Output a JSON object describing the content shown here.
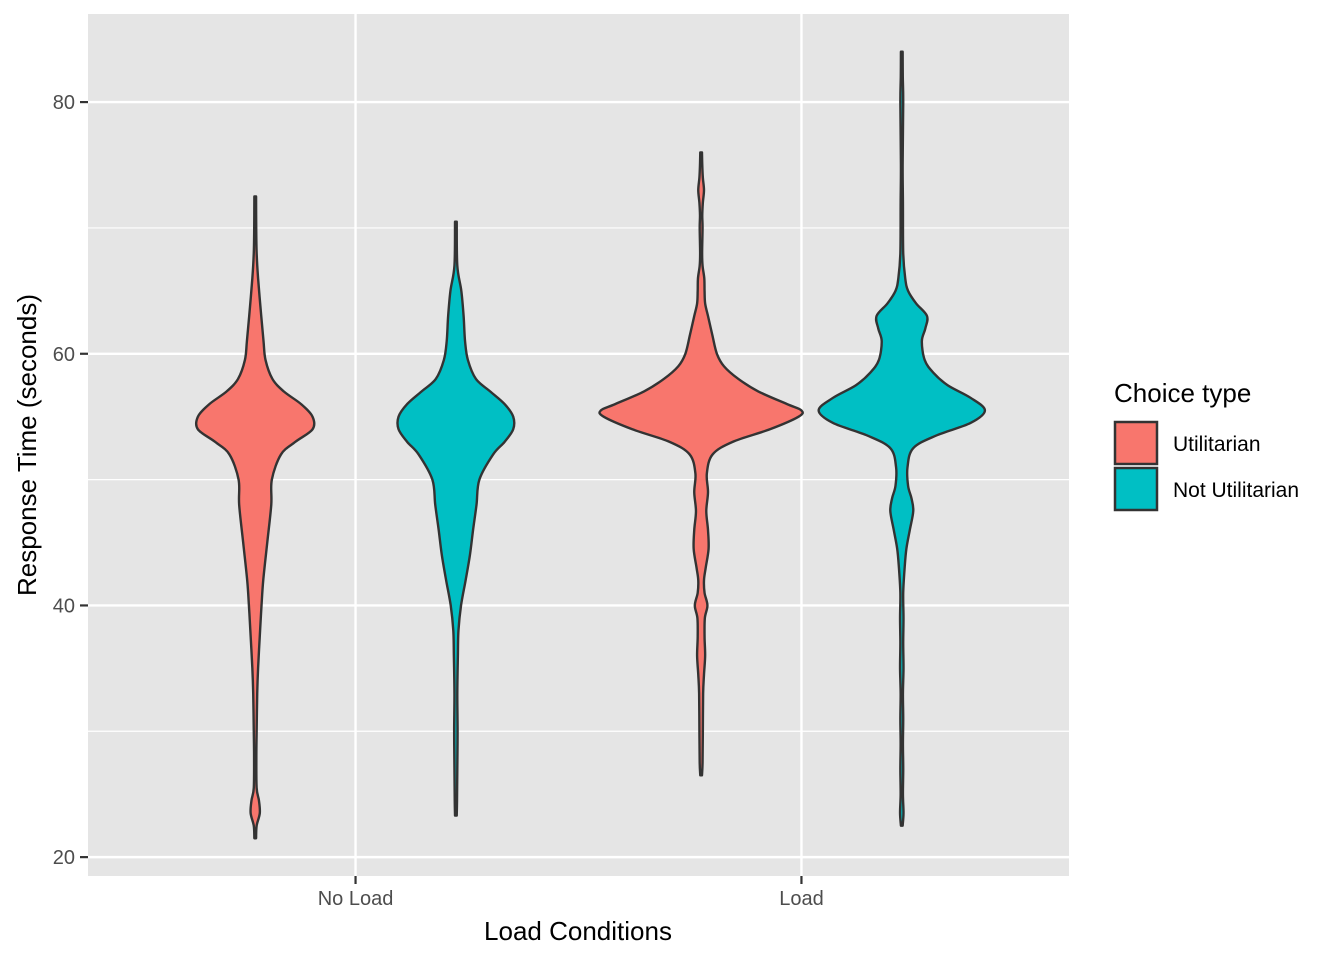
{
  "chart_data": {
    "type": "violin",
    "xlabel": "Load Conditions",
    "ylabel": "Response Time (seconds)",
    "categories": [
      "No Load",
      "Load"
    ],
    "ylim": [
      18.5,
      87
    ],
    "yticks": [
      20,
      40,
      60,
      80
    ],
    "grid": true,
    "legend": {
      "title": "Choice type",
      "position": "right"
    },
    "colors": {
      "panel": "#e5e5e5",
      "grid": "#ffffff",
      "outline": "#333333",
      "Utilitarian": "#f8766d",
      "Not Utilitarian": "#00bfc4"
    },
    "series": [
      {
        "name": "Utilitarian",
        "color": "#f8766d",
        "violins": [
          {
            "category": "No Load",
            "profile": [
              [
                21.5,
                0.3
              ],
              [
                22.5,
                0.5
              ],
              [
                23.5,
                1.6
              ],
              [
                24.5,
                1.3
              ],
              [
                25.5,
                0.5
              ],
              [
                28,
                0.4
              ],
              [
                30,
                0.5
              ],
              [
                33,
                0.7
              ],
              [
                35,
                1.0
              ],
              [
                38,
                1.7
              ],
              [
                40,
                2.2
              ],
              [
                42,
                2.8
              ],
              [
                45,
                4.2
              ],
              [
                48,
                5.6
              ],
              [
                50,
                5.8
              ],
              [
                52,
                9
              ],
              [
                53,
                14
              ],
              [
                54,
                20
              ],
              [
                55,
                20
              ],
              [
                56,
                16
              ],
              [
                57,
                10
              ],
              [
                58,
                6
              ],
              [
                59.5,
                3.6
              ],
              [
                61,
                2.9
              ],
              [
                63,
                2.1
              ],
              [
                66,
                1.0
              ],
              [
                68,
                0.5
              ],
              [
                70,
                0.35
              ],
              [
                72.5,
                0.3
              ]
            ]
          },
          {
            "category": "Load",
            "profile": [
              [
                26.5,
                0.3
              ],
              [
                27.5,
                0.5
              ],
              [
                30,
                0.6
              ],
              [
                33,
                0.7
              ],
              [
                34.5,
                1.0
              ],
              [
                36,
                1.4
              ],
              [
                37.5,
                1.2
              ],
              [
                39,
                1.3
              ],
              [
                40,
                2.2
              ],
              [
                41,
                1.2
              ],
              [
                42,
                1.0
              ],
              [
                43,
                1.6
              ],
              [
                44.5,
                2.6
              ],
              [
                46,
                2.4
              ],
              [
                47.5,
                1.8
              ],
              [
                49,
                2.4
              ],
              [
                50.5,
                2.0
              ],
              [
                52,
                4
              ],
              [
                53,
                11
              ],
              [
                54,
                24
              ],
              [
                55,
                34
              ],
              [
                55.5,
                35
              ],
              [
                56,
                30
              ],
              [
                57,
                20
              ],
              [
                58,
                13
              ],
              [
                59,
                8
              ],
              [
                60,
                5.5
              ],
              [
                61.5,
                3.9
              ],
              [
                63,
                2.4
              ],
              [
                64,
                1.4
              ],
              [
                65,
                1.2
              ],
              [
                66,
                1.1
              ],
              [
                67,
                0.5
              ],
              [
                68,
                0.35
              ],
              [
                70,
                0.5
              ],
              [
                71,
                0.4
              ],
              [
                72,
                0.6
              ],
              [
                73,
                1.0
              ],
              [
                74,
                0.6
              ],
              [
                75,
                0.4
              ],
              [
                76,
                0.3
              ]
            ]
          }
        ]
      },
      {
        "name": "Not Utilitarian",
        "color": "#00bfc4",
        "violins": [
          {
            "category": "No Load",
            "profile": [
              [
                23.3,
                0.3
              ],
              [
                24.5,
                0.4
              ],
              [
                27,
                0.5
              ],
              [
                30,
                0.6
              ],
              [
                33,
                0.5
              ],
              [
                36,
                0.7
              ],
              [
                38,
                0.9
              ],
              [
                40,
                1.8
              ],
              [
                42,
                3.4
              ],
              [
                44,
                4.9
              ],
              [
                46,
                6.0
              ],
              [
                48,
                7.2
              ],
              [
                50,
                8.2
              ],
              [
                52,
                13
              ],
              [
                53,
                17
              ],
              [
                54,
                20
              ],
              [
                55,
                20
              ],
              [
                56,
                17
              ],
              [
                57,
                12
              ],
              [
                58,
                7
              ],
              [
                59.5,
                4.2
              ],
              [
                61,
                3.2
              ],
              [
                63,
                2.7
              ],
              [
                65,
                1.9
              ],
              [
                67,
                0.5
              ],
              [
                70.5,
                0.3
              ]
            ]
          },
          {
            "category": "Load",
            "profile": [
              [
                22.5,
                0.3
              ],
              [
                23.5,
                0.6
              ],
              [
                25,
                0.4
              ],
              [
                27,
                0.5
              ],
              [
                29,
                0.4
              ],
              [
                31,
                0.5
              ],
              [
                33,
                0.4
              ],
              [
                35,
                0.6
              ],
              [
                37,
                0.5
              ],
              [
                39,
                0.6
              ],
              [
                41,
                0.5
              ],
              [
                43,
                1.0
              ],
              [
                44.5,
                1.6
              ],
              [
                46,
                2.8
              ],
              [
                47.5,
                4.0
              ],
              [
                48.5,
                3.4
              ],
              [
                49.5,
                2.2
              ],
              [
                51,
                2.0
              ],
              [
                52.5,
                4.0
              ],
              [
                53.5,
                12
              ],
              [
                54.5,
                24
              ],
              [
                55.5,
                29
              ],
              [
                56.5,
                24
              ],
              [
                57.5,
                16
              ],
              [
                58.5,
                11
              ],
              [
                59.5,
                8
              ],
              [
                61,
                7
              ],
              [
                62,
                8.2
              ],
              [
                63,
                8.8
              ],
              [
                64,
                5
              ],
              [
                65,
                2.2
              ],
              [
                66,
                1.2
              ],
              [
                68,
                0.5
              ],
              [
                72,
                0.4
              ],
              [
                75,
                0.3
              ],
              [
                80,
                0.5
              ],
              [
                82,
                0.35
              ],
              [
                84,
                0.3
              ]
            ]
          }
        ]
      }
    ]
  }
}
